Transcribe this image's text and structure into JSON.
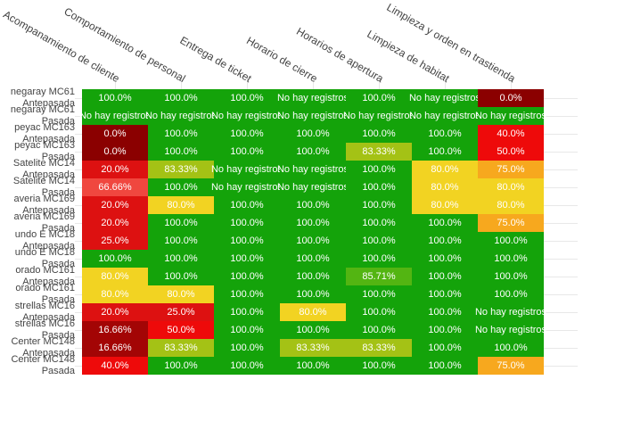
{
  "chart_data": {
    "type": "heatmap",
    "title": "",
    "x_labels": [
      "Acompanamiento de cliente",
      "Comportamiento de personal",
      "Entrega de ticket",
      "Horario de cierre",
      "Horarios de apertura",
      "Limpieza de habitat",
      "Limpieza y orden en trastienda"
    ],
    "y_labels": [
      {
        "name": "negaray MC61",
        "period": "Antepasada"
      },
      {
        "name": "negaray MC61",
        "period": "Pasada"
      },
      {
        "name": "peyac MC163",
        "period": "Antepasada"
      },
      {
        "name": "peyac MC163",
        "period": "Pasada"
      },
      {
        "name": "Satelite MC14",
        "period": "Antepasada"
      },
      {
        "name": "Satelite MC14",
        "period": "Pasada"
      },
      {
        "name": "averia MC169",
        "period": "Antepasada"
      },
      {
        "name": "averia MC169",
        "period": "Pasada"
      },
      {
        "name": "undo E MC18",
        "period": "Antepasada"
      },
      {
        "name": "undo E MC18",
        "period": "Pasada"
      },
      {
        "name": "orado MC161",
        "period": "Antepasada"
      },
      {
        "name": "orado MC161",
        "period": "Pasada"
      },
      {
        "name": "strellas MC16",
        "period": "Antepasada"
      },
      {
        "name": "strellas MC16",
        "period": "Pasada"
      },
      {
        "name": "Center MC148",
        "period": "Antepasada"
      },
      {
        "name": "Center MC148",
        "period": "Pasada"
      }
    ],
    "no_data_label": "No hay registros",
    "cells": [
      [
        "100.0%",
        "100.0%",
        "100.0%",
        "No hay registros",
        "100.0%",
        "No hay registros",
        "0.0%"
      ],
      [
        "No hay registros",
        "No hay registros",
        "No hay registros",
        "No hay registros",
        "No hay registros",
        "No hay registros",
        "No hay registros"
      ],
      [
        "0.0%",
        "100.0%",
        "100.0%",
        "100.0%",
        "100.0%",
        "100.0%",
        "40.0%"
      ],
      [
        "0.0%",
        "100.0%",
        "100.0%",
        "100.0%",
        "83.33%",
        "100.0%",
        "50.0%"
      ],
      [
        "20.0%",
        "83.33%",
        "No hay registros",
        "No hay registros",
        "100.0%",
        "80.0%",
        "75.0%"
      ],
      [
        "66.66%",
        "100.0%",
        "No hay registros",
        "No hay registros",
        "100.0%",
        "80.0%",
        "80.0%"
      ],
      [
        "20.0%",
        "80.0%",
        "100.0%",
        "100.0%",
        "100.0%",
        "80.0%",
        "80.0%"
      ],
      [
        "20.0%",
        "100.0%",
        "100.0%",
        "100.0%",
        "100.0%",
        "100.0%",
        "75.0%"
      ],
      [
        "25.0%",
        "100.0%",
        "100.0%",
        "100.0%",
        "100.0%",
        "100.0%",
        "100.0%"
      ],
      [
        "100.0%",
        "100.0%",
        "100.0%",
        "100.0%",
        "100.0%",
        "100.0%",
        "100.0%"
      ],
      [
        "80.0%",
        "100.0%",
        "100.0%",
        "100.0%",
        "85.71%",
        "100.0%",
        "100.0%"
      ],
      [
        "80.0%",
        "80.0%",
        "100.0%",
        "100.0%",
        "100.0%",
        "100.0%",
        "100.0%"
      ],
      [
        "20.0%",
        "25.0%",
        "100.0%",
        "80.0%",
        "100.0%",
        "100.0%",
        "No hay registros"
      ],
      [
        "16.66%",
        "50.0%",
        "100.0%",
        "100.0%",
        "100.0%",
        "100.0%",
        "No hay registros"
      ],
      [
        "16.66%",
        "83.33%",
        "100.0%",
        "83.33%",
        "83.33%",
        "100.0%",
        "100.0%"
      ],
      [
        "40.0%",
        "100.0%",
        "100.0%",
        "100.0%",
        "100.0%",
        "100.0%",
        "75.0%"
      ]
    ],
    "values": [
      [
        100,
        100,
        100,
        null,
        100,
        null,
        0
      ],
      [
        null,
        null,
        null,
        null,
        null,
        null,
        null
      ],
      [
        0,
        100,
        100,
        100,
        100,
        100,
        40
      ],
      [
        0,
        100,
        100,
        100,
        83.33,
        100,
        50
      ],
      [
        20,
        83.33,
        null,
        null,
        100,
        80,
        75
      ],
      [
        66.66,
        100,
        null,
        null,
        100,
        80,
        80
      ],
      [
        20,
        80,
        100,
        100,
        100,
        80,
        80
      ],
      [
        20,
        100,
        100,
        100,
        100,
        100,
        75
      ],
      [
        25,
        100,
        100,
        100,
        100,
        100,
        100
      ],
      [
        100,
        100,
        100,
        100,
        100,
        100,
        100
      ],
      [
        80,
        100,
        100,
        100,
        85.71,
        100,
        100
      ],
      [
        80,
        80,
        100,
        100,
        100,
        100,
        100
      ],
      [
        20,
        25,
        100,
        80,
        100,
        100,
        null
      ],
      [
        16.66,
        50,
        100,
        100,
        100,
        100,
        null
      ],
      [
        16.66,
        83.33,
        100,
        83.33,
        83.33,
        100,
        100
      ],
      [
        40,
        100,
        100,
        100,
        100,
        100,
        75
      ]
    ],
    "x_tick_angle": 30,
    "grid": "on",
    "legend": "none"
  },
  "value_colors": {
    "0": "#8b0000",
    "16.66": "#a30505",
    "20": "#dd1111",
    "25": "#dd1111",
    "40": "#ee0a0a",
    "50": "#ee0a0a",
    "66.66": "#f0473f",
    "75": "#f7a81e",
    "80": "#f2d322",
    "83.33": "#a4c215",
    "85.71": "#53b512",
    "100": "#14a30a",
    "no_data": "#14a30a"
  },
  "text_colors": {
    "cell_text": "#ffffff",
    "tick_text": "#444444",
    "gridline": "#e8e8e8"
  }
}
